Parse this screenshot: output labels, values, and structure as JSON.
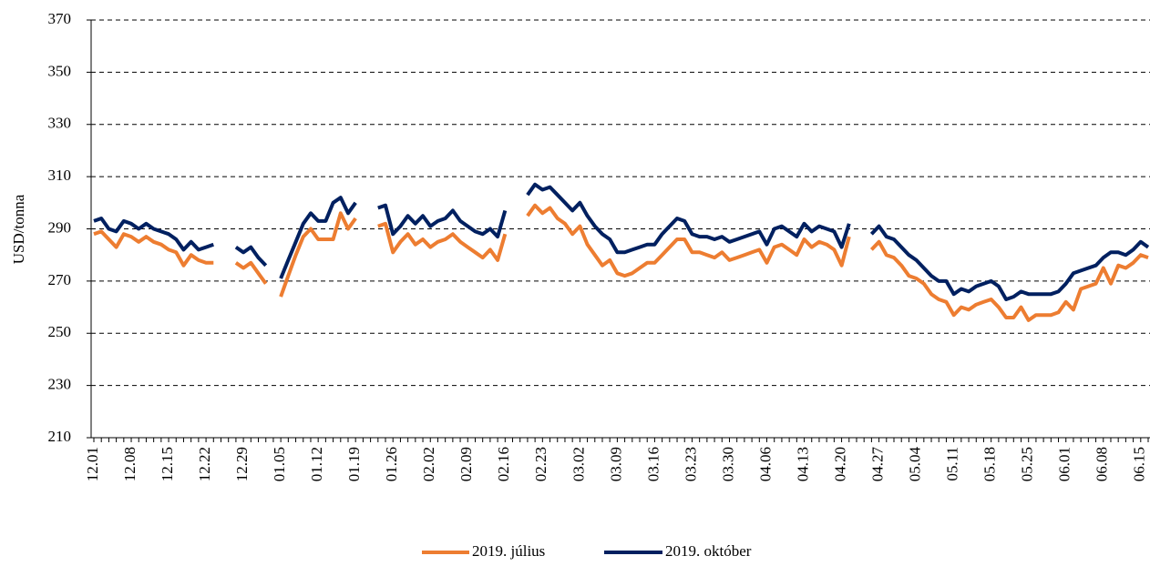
{
  "chart_data": {
    "type": "line",
    "y_label": "USD/tonna",
    "ylim": [
      210,
      370
    ],
    "yticks": [
      210,
      230,
      250,
      270,
      290,
      310,
      330,
      350,
      370
    ],
    "grid": true,
    "legend": "bottom",
    "categories": [
      "12.01",
      null,
      null,
      null,
      null,
      "12.08",
      null,
      null,
      null,
      null,
      "12.15",
      null,
      null,
      null,
      null,
      "12.22",
      null,
      null,
      null,
      null,
      "12.29",
      null,
      null,
      null,
      null,
      "01.05",
      null,
      null,
      null,
      null,
      "01.12",
      null,
      null,
      null,
      null,
      "01.19",
      null,
      null,
      null,
      null,
      "01.26",
      null,
      null,
      null,
      null,
      "02.02",
      null,
      null,
      null,
      null,
      "02.09",
      null,
      null,
      null,
      null,
      "02.16",
      null,
      null,
      null,
      null,
      "02.23",
      null,
      null,
      null,
      null,
      "03.02",
      null,
      null,
      null,
      null,
      "03.09",
      null,
      null,
      null,
      null,
      "03.16",
      null,
      null,
      null,
      null,
      "03.23",
      null,
      null,
      null,
      null,
      "03.30",
      null,
      null,
      null,
      null,
      "04.06",
      null,
      null,
      null,
      null,
      "04.13",
      null,
      null,
      null,
      null,
      "04.20",
      null,
      null,
      null,
      null,
      "04.27",
      null,
      null,
      null,
      null,
      "05.04",
      null,
      null,
      null,
      null,
      "05.11",
      null,
      null,
      null,
      null,
      "05.18",
      null,
      null,
      null,
      null,
      "05.25",
      null,
      null,
      null,
      null,
      "06.01",
      null,
      null,
      null,
      null,
      "06.08",
      null,
      null,
      null,
      null,
      "06.15",
      null
    ],
    "series": [
      {
        "name": "2019. július",
        "color": "#ED7D31",
        "values": [
          288,
          289,
          286,
          283,
          288,
          287,
          285,
          287,
          285,
          284,
          282,
          281,
          276,
          280,
          278,
          277,
          277,
          null,
          null,
          277,
          275,
          277,
          273,
          269,
          null,
          264,
          272,
          280,
          287,
          290,
          286,
          286,
          286,
          296,
          290,
          294,
          null,
          null,
          291,
          292,
          281,
          285,
          288,
          284,
          286,
          283,
          285,
          286,
          288,
          285,
          283,
          281,
          279,
          282,
          278,
          288,
          null,
          null,
          295,
          299,
          296,
          298,
          294,
          292,
          288,
          291,
          284,
          280,
          276,
          278,
          273,
          272,
          273,
          275,
          277,
          277,
          280,
          283,
          286,
          286,
          281,
          281,
          280,
          279,
          281,
          278,
          279,
          280,
          281,
          282,
          277,
          283,
          284,
          282,
          280,
          286,
          283,
          285,
          284,
          282,
          276,
          287,
          null,
          null,
          282,
          285,
          280,
          279,
          276,
          272,
          271,
          269,
          265,
          263,
          262,
          257,
          260,
          259,
          261,
          262,
          263,
          260,
          256,
          256,
          260,
          255,
          257,
          257,
          257,
          258,
          262,
          259,
          267,
          268,
          269,
          275,
          269,
          276,
          275,
          277,
          280,
          279
        ]
      },
      {
        "name": "2019. október",
        "color": "#002060",
        "values": [
          293,
          294,
          290,
          289,
          293,
          292,
          290,
          292,
          290,
          289,
          288,
          286,
          282,
          285,
          282,
          283,
          284,
          null,
          null,
          283,
          281,
          283,
          279,
          276,
          null,
          271,
          278,
          285,
          292,
          296,
          293,
          293,
          300,
          302,
          296,
          300,
          null,
          null,
          298,
          299,
          288,
          291,
          295,
          292,
          295,
          291,
          293,
          294,
          297,
          293,
          291,
          289,
          288,
          290,
          287,
          297,
          null,
          null,
          303,
          307,
          305,
          306,
          303,
          300,
          297,
          300,
          295,
          291,
          288,
          286,
          281,
          281,
          282,
          283,
          284,
          284,
          288,
          291,
          294,
          293,
          288,
          287,
          287,
          286,
          287,
          285,
          286,
          287,
          288,
          289,
          284,
          290,
          291,
          289,
          287,
          292,
          289,
          291,
          290,
          289,
          283,
          292,
          null,
          null,
          288,
          291,
          287,
          286,
          283,
          280,
          278,
          275,
          272,
          270,
          270,
          265,
          267,
          266,
          268,
          269,
          270,
          268,
          263,
          264,
          266,
          265,
          265,
          265,
          265,
          266,
          269,
          273,
          274,
          275,
          276,
          279,
          281,
          281,
          280,
          282,
          285,
          283
        ]
      }
    ]
  }
}
